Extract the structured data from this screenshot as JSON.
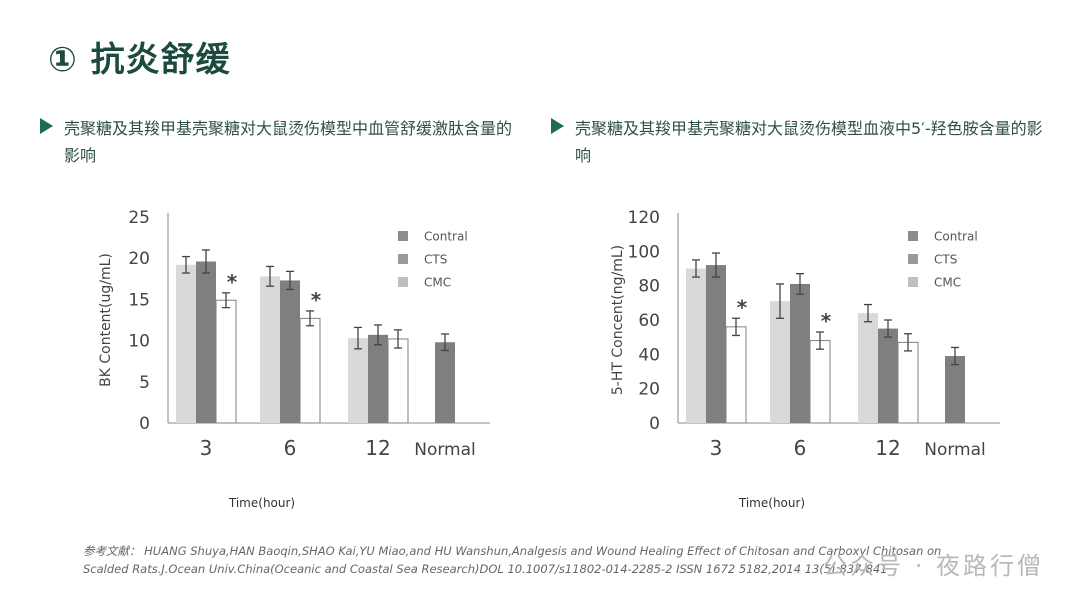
{
  "page": {
    "title": "① 抗炎舒缓",
    "left_heading": "壳聚糖及其羧甲基壳聚糖对大鼠烫伤模型中血管舒缓激肽含量的影响",
    "right_heading": "壳聚糖及其羧甲基壳聚糖对大鼠烫伤模型血液中5′-羟色胺含量的影响",
    "references": "参考文献：  HUANG Shuya,HAN Baoqin,SHAO Kai,YU Miao,and HU Wanshun,Analgesis and Wound Healing Effect of Chitosan and Carboxyl Chitosan on Scalded Rats.J.Ocean Univ.China(Oceanic and Coastal Sea Research)DOL 10.1007/s11802-014-2285-2 ISSN 1672 5182,2014 13(5):837-841",
    "watermark": "公众号 · 夜路行僧"
  },
  "colors": {
    "title": "#1d4a3e",
    "accent": "#1f6b5a",
    "contral": "#d9d9d9",
    "cts": "#7f7f7f",
    "cmc": "#ffffff",
    "normal": "#7f7f7f",
    "legend_cmc_swatch": "#bfbfbf"
  },
  "chart_data": [
    {
      "type": "bar",
      "title": "",
      "xlabel": "Time(hour)",
      "ylabel": "BK Content(ug/mL)",
      "ylim": [
        0,
        25
      ],
      "yticks": [
        0,
        5,
        10,
        15,
        20,
        25
      ],
      "categories": [
        "3",
        "6",
        "12",
        "Normal"
      ],
      "legend": [
        "Contral",
        "CTS",
        "CMC"
      ],
      "legend_position": "top-right",
      "series": [
        {
          "name": "Contral",
          "values": [
            19.2,
            17.8,
            10.3,
            null
          ],
          "errors": [
            1.0,
            1.2,
            1.3,
            null
          ]
        },
        {
          "name": "CTS",
          "values": [
            19.6,
            17.3,
            10.7,
            null
          ],
          "errors": [
            1.4,
            1.1,
            1.2,
            null
          ]
        },
        {
          "name": "CMC",
          "values": [
            14.9,
            12.7,
            10.2,
            null
          ],
          "errors": [
            0.9,
            0.9,
            1.1,
            null
          ],
          "significance": [
            "*",
            "*",
            "",
            ""
          ]
        },
        {
          "name": "Normal",
          "values": [
            null,
            null,
            null,
            9.8
          ],
          "errors": [
            null,
            null,
            null,
            1.0
          ]
        }
      ]
    },
    {
      "type": "bar",
      "title": "",
      "xlabel": "Time(hour)",
      "ylabel": "5-HT Concent(ng/mL)",
      "ylim": [
        0,
        120
      ],
      "yticks": [
        0,
        20,
        40,
        60,
        80,
        100,
        120
      ],
      "categories": [
        "3",
        "6",
        "12",
        "Normal"
      ],
      "legend": [
        "Contral",
        "CTS",
        "CMC"
      ],
      "legend_position": "top-right",
      "series": [
        {
          "name": "Contral",
          "values": [
            90,
            71,
            64,
            null
          ],
          "errors": [
            5,
            10,
            5,
            null
          ]
        },
        {
          "name": "CTS",
          "values": [
            92,
            81,
            55,
            null
          ],
          "errors": [
            7,
            6,
            5,
            null
          ]
        },
        {
          "name": "CMC",
          "values": [
            56,
            48,
            47,
            null
          ],
          "errors": [
            5,
            5,
            5,
            null
          ],
          "significance": [
            "*",
            "*",
            "",
            ""
          ]
        },
        {
          "name": "Normal",
          "values": [
            null,
            null,
            null,
            39
          ],
          "errors": [
            null,
            null,
            null,
            5
          ]
        }
      ]
    }
  ]
}
